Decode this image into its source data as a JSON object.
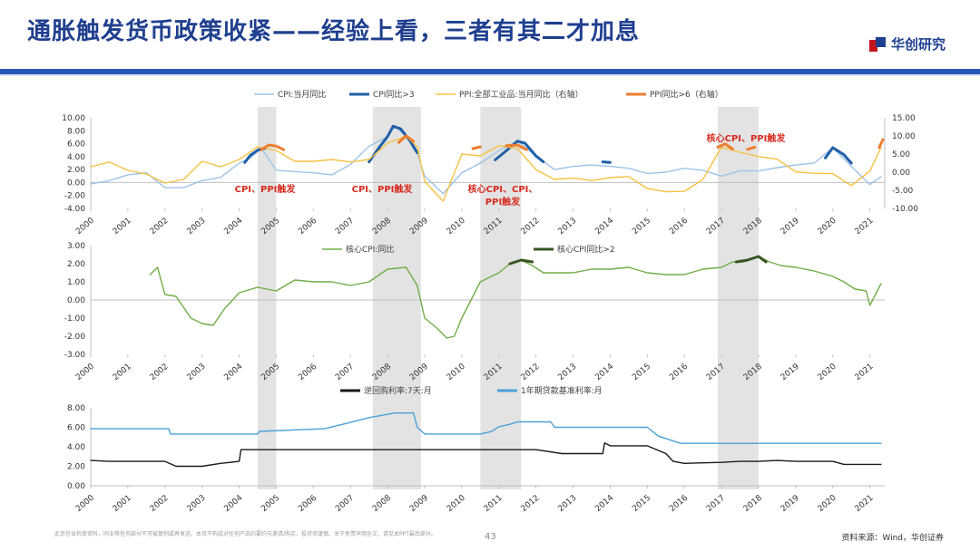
{
  "header": {
    "title": "通胀触发货币政策收紧——经验上看，三者有其二才加息",
    "logo_text": "华创研究",
    "colors": {
      "brand_blue": "#1f3f8f",
      "brand_red": "#c5161d",
      "rule": "#2557b8"
    }
  },
  "footer": {
    "disclaimer": "此页包含机密资料，同业等任何部分不可被复制或再发送。本页不构成对任何产品的要约与邀请/购买，投资须谨慎。关于免责声明全文，请见本PPT最后部分。",
    "page_number": "43",
    "source": "资料来源：Wind，华创证券"
  },
  "chart_data": [
    {
      "id": "top",
      "type": "line",
      "legend": [
        "CPI:当月同比",
        "CPI同比>3",
        "PPI:全部工业品:当月同比（右轴）",
        "PPI同比>6（右轴）"
      ],
      "colors": [
        "#9dc3e6",
        "#1f5fa8",
        "#f5c243",
        "#ee7d2f"
      ],
      "x_ticks": [
        "2000",
        "2001",
        "2002",
        "2003",
        "2004",
        "2005",
        "2006",
        "2007",
        "2008",
        "2009",
        "2010",
        "2011",
        "2012",
        "2013",
        "2014",
        "2015",
        "2016",
        "2017",
        "2018",
        "2019",
        "2020",
        "2021"
      ],
      "ylim_left": [
        -4,
        10
      ],
      "yticks_left": [
        "10.00",
        "8.00",
        "6.00",
        "4.00",
        "2.00",
        "0.00",
        "-2.00",
        "-4.00"
      ],
      "ylim_right": [
        -10,
        15
      ],
      "yticks_right": [
        "15.00",
        "10.00",
        "5.00",
        "0.00",
        "-5.00",
        "-10.00"
      ],
      "annotations": [
        "CPI、PPI触发",
        "CPI、PPI触发",
        "核心CPI、CPI、",
        "PPI触发",
        "核心CPI、PPI触发"
      ],
      "series": [
        {
          "name": "CPI:当月同比",
          "axis": "left",
          "x": [
            2000,
            2000.5,
            2001,
            2001.5,
            2002,
            2002.5,
            2003,
            2003.5,
            2004,
            2004.3,
            2004.6,
            2005,
            2005.5,
            2006,
            2006.5,
            2007,
            2007.5,
            2008,
            2008.2,
            2008.5,
            2008.8,
            2009,
            2009.5,
            2010,
            2010.5,
            2011,
            2011.5,
            2012,
            2012.5,
            2013,
            2013.5,
            2014,
            2014.5,
            2015,
            2015.5,
            2016,
            2016.5,
            2017,
            2017.5,
            2018,
            2018.5,
            2019,
            2019.5,
            2020,
            2020.5,
            2021,
            2021.3
          ],
          "values": [
            -0.2,
            0.3,
            1.2,
            1.5,
            -0.8,
            -0.8,
            0.3,
            0.8,
            3.0,
            3.8,
            5.3,
            1.9,
            1.7,
            1.5,
            1.2,
            2.8,
            5.6,
            7.1,
            8.7,
            7.1,
            4.6,
            1.0,
            -1.7,
            1.5,
            3.0,
            4.9,
            6.4,
            4.1,
            2.0,
            2.5,
            2.7,
            2.5,
            2.2,
            1.4,
            1.6,
            2.2,
            1.9,
            1.0,
            1.8,
            1.8,
            2.3,
            2.7,
            3.0,
            5.4,
            2.5,
            -0.3,
            0.9
          ]
        },
        {
          "name": "CPI同比>3",
          "axis": "left",
          "segments": [
            {
              "x": [
                2004.15,
                2004.3,
                2004.5,
                2004.7
              ],
              "values": [
                3.1,
                4.2,
                5.0,
                5.3
              ]
            },
            {
              "x": [
                2007.5,
                2007.8,
                2008.0,
                2008.15,
                2008.35,
                2008.6,
                2008.8
              ],
              "values": [
                3.2,
                5.6,
                7.1,
                8.7,
                8.3,
                6.5,
                4.6
              ]
            },
            {
              "x": [
                2010.9,
                2011.2,
                2011.5,
                2011.7,
                2012.0
              ],
              "values": [
                3.5,
                4.9,
                6.4,
                6.1,
                4.1
              ]
            },
            {
              "x": [
                2012.0,
                2012.2
              ],
              "values": [
                4.1,
                3.2
              ]
            },
            {
              "x": [
                2013.8,
                2014.0
              ],
              "values": [
                3.2,
                3.1
              ]
            },
            {
              "x": [
                2019.8,
                2020.0,
                2020.3,
                2020.5
              ],
              "values": [
                3.8,
                5.4,
                4.3,
                3.0
              ]
            }
          ]
        },
        {
          "name": "PPI:全部工业品:当月同比（右轴）",
          "axis": "right",
          "x": [
            2000,
            2000.5,
            2001,
            2001.5,
            2002,
            2002.5,
            2003,
            2003.5,
            2004,
            2004.5,
            2005,
            2005.5,
            2006,
            2006.5,
            2007,
            2007.5,
            2008,
            2008.5,
            2008.8,
            2009,
            2009.5,
            2010,
            2010.5,
            2011,
            2011.5,
            2012,
            2012.5,
            2013,
            2013.5,
            2014,
            2014.5,
            2015,
            2015.5,
            2016,
            2016.5,
            2017,
            2017.5,
            2018,
            2018.5,
            2019,
            2019.5,
            2020,
            2020.5,
            2021,
            2021.3
          ],
          "values": [
            1.5,
            2.8,
            0.5,
            -0.5,
            -3.0,
            -2.0,
            3.0,
            1.5,
            3.5,
            7.0,
            6.0,
            3.0,
            3.0,
            3.5,
            2.8,
            3.5,
            8.0,
            10.0,
            7.0,
            -2.5,
            -8.0,
            5.0,
            4.5,
            7.3,
            6.5,
            0.7,
            -2.0,
            -1.6,
            -2.3,
            -1.5,
            -1.2,
            -4.5,
            -5.4,
            -5.3,
            -2.0,
            6.9,
            5.5,
            4.3,
            3.6,
            0.1,
            -0.3,
            -0.4,
            -3.7,
            0.3,
            6.8
          ]
        },
        {
          "name": "PPI同比>6（右轴）",
          "axis": "right",
          "segments": [
            {
              "x": [
                2004.6,
                2004.8,
                2005.0,
                2005.2
              ],
              "values": [
                6.2,
                7.5,
                7.2,
                6.2
              ]
            },
            {
              "x": [
                2008.3,
                2008.5,
                2008.7
              ],
              "values": [
                8.2,
                10.0,
                8.5
              ]
            },
            {
              "x": [
                2010.3,
                2010.5
              ],
              "values": [
                6.5,
                7.0
              ]
            },
            {
              "x": [
                2011.2,
                2011.5,
                2011.75
              ],
              "values": [
                7.3,
                7.5,
                6.2
              ]
            },
            {
              "x": [
                2016.9,
                2017.1,
                2017.3
              ],
              "values": [
                6.9,
                7.8,
                6.4
              ]
            },
            {
              "x": [
                2017.7,
                2017.9
              ],
              "values": [
                6.3,
                6.9
              ]
            },
            {
              "x": [
                2021.25,
                2021.35
              ],
              "values": [
                6.8,
                9.0
              ]
            }
          ]
        }
      ]
    },
    {
      "id": "middle",
      "type": "line",
      "legend": [
        "核心CPI:同比",
        "核心CPI同比>2"
      ],
      "colors": [
        "#70ad47",
        "#375623"
      ],
      "x_ticks": [
        "2000",
        "2001",
        "2002",
        "2003",
        "2004",
        "2005",
        "2006",
        "2007",
        "2008",
        "2009",
        "2010",
        "2011",
        "2012",
        "2013",
        "2014",
        "2015",
        "2016",
        "2017",
        "2018",
        "2019",
        "2020",
        "2021"
      ],
      "ylim": [
        -3,
        3
      ],
      "yticks": [
        "3.00",
        "2.00",
        "1.00",
        "0.00",
        "-1.00",
        "-2.00",
        "-3.00"
      ],
      "series": [
        {
          "name": "核心CPI:同比",
          "x": [
            2001.6,
            2001.8,
            2002,
            2002.3,
            2002.7,
            2003.0,
            2003.3,
            2003.6,
            2004.0,
            2004.5,
            2005,
            2005.5,
            2006,
            2006.5,
            2007,
            2007.5,
            2008,
            2008.5,
            2008.8,
            2009.0,
            2009.3,
            2009.6,
            2009.8,
            2010,
            2010.5,
            2011,
            2011.3,
            2011.6,
            2011.9,
            2012.2,
            2012.5,
            2013,
            2013.5,
            2014,
            2014.5,
            2015,
            2015.5,
            2016,
            2016.5,
            2017,
            2017.3,
            2017.6,
            2018,
            2018.3,
            2018.6,
            2019,
            2019.5,
            2020,
            2020.3,
            2020.6,
            2020.9,
            2021.0,
            2021.3
          ],
          "values": [
            1.4,
            1.8,
            0.3,
            0.2,
            -1.0,
            -1.3,
            -1.4,
            -0.5,
            0.4,
            0.7,
            0.5,
            1.1,
            1.0,
            1.0,
            0.8,
            1.0,
            1.7,
            1.8,
            0.8,
            -1.0,
            -1.5,
            -2.1,
            -2.0,
            -1.0,
            1.0,
            1.5,
            2.0,
            2.2,
            1.9,
            1.5,
            1.5,
            1.5,
            1.7,
            1.7,
            1.8,
            1.5,
            1.4,
            1.4,
            1.7,
            1.8,
            2.1,
            2.1,
            2.4,
            2.1,
            1.9,
            1.8,
            1.6,
            1.3,
            1.0,
            0.6,
            0.5,
            -0.3,
            0.9
          ]
        },
        {
          "name": "核心CPI同比>2",
          "segments": [
            {
              "x": [
                2011.3,
                2011.6,
                2011.9
              ],
              "values": [
                2.0,
                2.2,
                2.1
              ]
            },
            {
              "x": [
                2017.4,
                2017.7,
                2018.0,
                2018.2
              ],
              "values": [
                2.1,
                2.2,
                2.4,
                2.1
              ]
            }
          ]
        }
      ]
    },
    {
      "id": "bottom",
      "type": "line",
      "legend": [
        "逆回购利率:7天:月",
        "1年期贷款基准利率:月"
      ],
      "colors": [
        "#1a1a1a",
        "#4ba1d8"
      ],
      "x_ticks": [
        "2000",
        "2001",
        "2002",
        "2003",
        "2004",
        "2005",
        "2006",
        "2007",
        "2008",
        "2009",
        "2010",
        "2011",
        "2012",
        "2013",
        "2014",
        "2015",
        "2016",
        "2017",
        "2018",
        "2019",
        "2020",
        "2021"
      ],
      "ylim": [
        0,
        8
      ],
      "yticks": [
        "8.00",
        "6.00",
        "4.00",
        "2.00",
        "0.00"
      ],
      "series": [
        {
          "name": "逆回购利率:7天:月",
          "x": [
            2000,
            2000.5,
            2001,
            2002,
            2002.3,
            2003,
            2003.5,
            2004,
            2004.05,
            2008,
            2009,
            2010,
            2011,
            2012,
            2012.7,
            2013,
            2013.8,
            2013.85,
            2014,
            2015,
            2015.5,
            2015.7,
            2016,
            2017,
            2017.5,
            2018,
            2018.5,
            2019,
            2019.5,
            2020,
            2020.3,
            2021,
            2021.3
          ],
          "values": [
            2.6,
            2.5,
            2.5,
            2.5,
            2.0,
            2.0,
            2.3,
            2.5,
            3.7,
            3.7,
            3.7,
            3.7,
            3.7,
            3.7,
            3.3,
            3.3,
            3.3,
            4.4,
            4.1,
            4.1,
            3.3,
            2.5,
            2.3,
            2.4,
            2.5,
            2.5,
            2.6,
            2.5,
            2.5,
            2.5,
            2.2,
            2.2,
            2.2
          ]
        },
        {
          "name": "1年期贷款基准利率:月",
          "x": [
            2000,
            2002.1,
            2002.15,
            2004.5,
            2004.55,
            2006.3,
            2007,
            2007.5,
            2008.2,
            2008.7,
            2008.8,
            2009,
            2010.5,
            2010.8,
            2011,
            2011.3,
            2011.5,
            2012.4,
            2012.5,
            2015,
            2015.3,
            2015.7,
            2015.9,
            2016,
            2018,
            2020,
            2021,
            2021.3
          ],
          "values": [
            5.85,
            5.85,
            5.31,
            5.31,
            5.58,
            5.85,
            6.5,
            7.0,
            7.47,
            7.47,
            6.0,
            5.31,
            5.31,
            5.56,
            6.06,
            6.31,
            6.56,
            6.56,
            6.0,
            6.0,
            5.1,
            4.6,
            4.35,
            4.35,
            4.35,
            4.35,
            4.35,
            4.35
          ]
        }
      ]
    }
  ],
  "shading_note": "gray bands: 2004.5-2005.0, 2007.6-2008.9, 2010.5-2011.6, 2016.9-2018.0"
}
